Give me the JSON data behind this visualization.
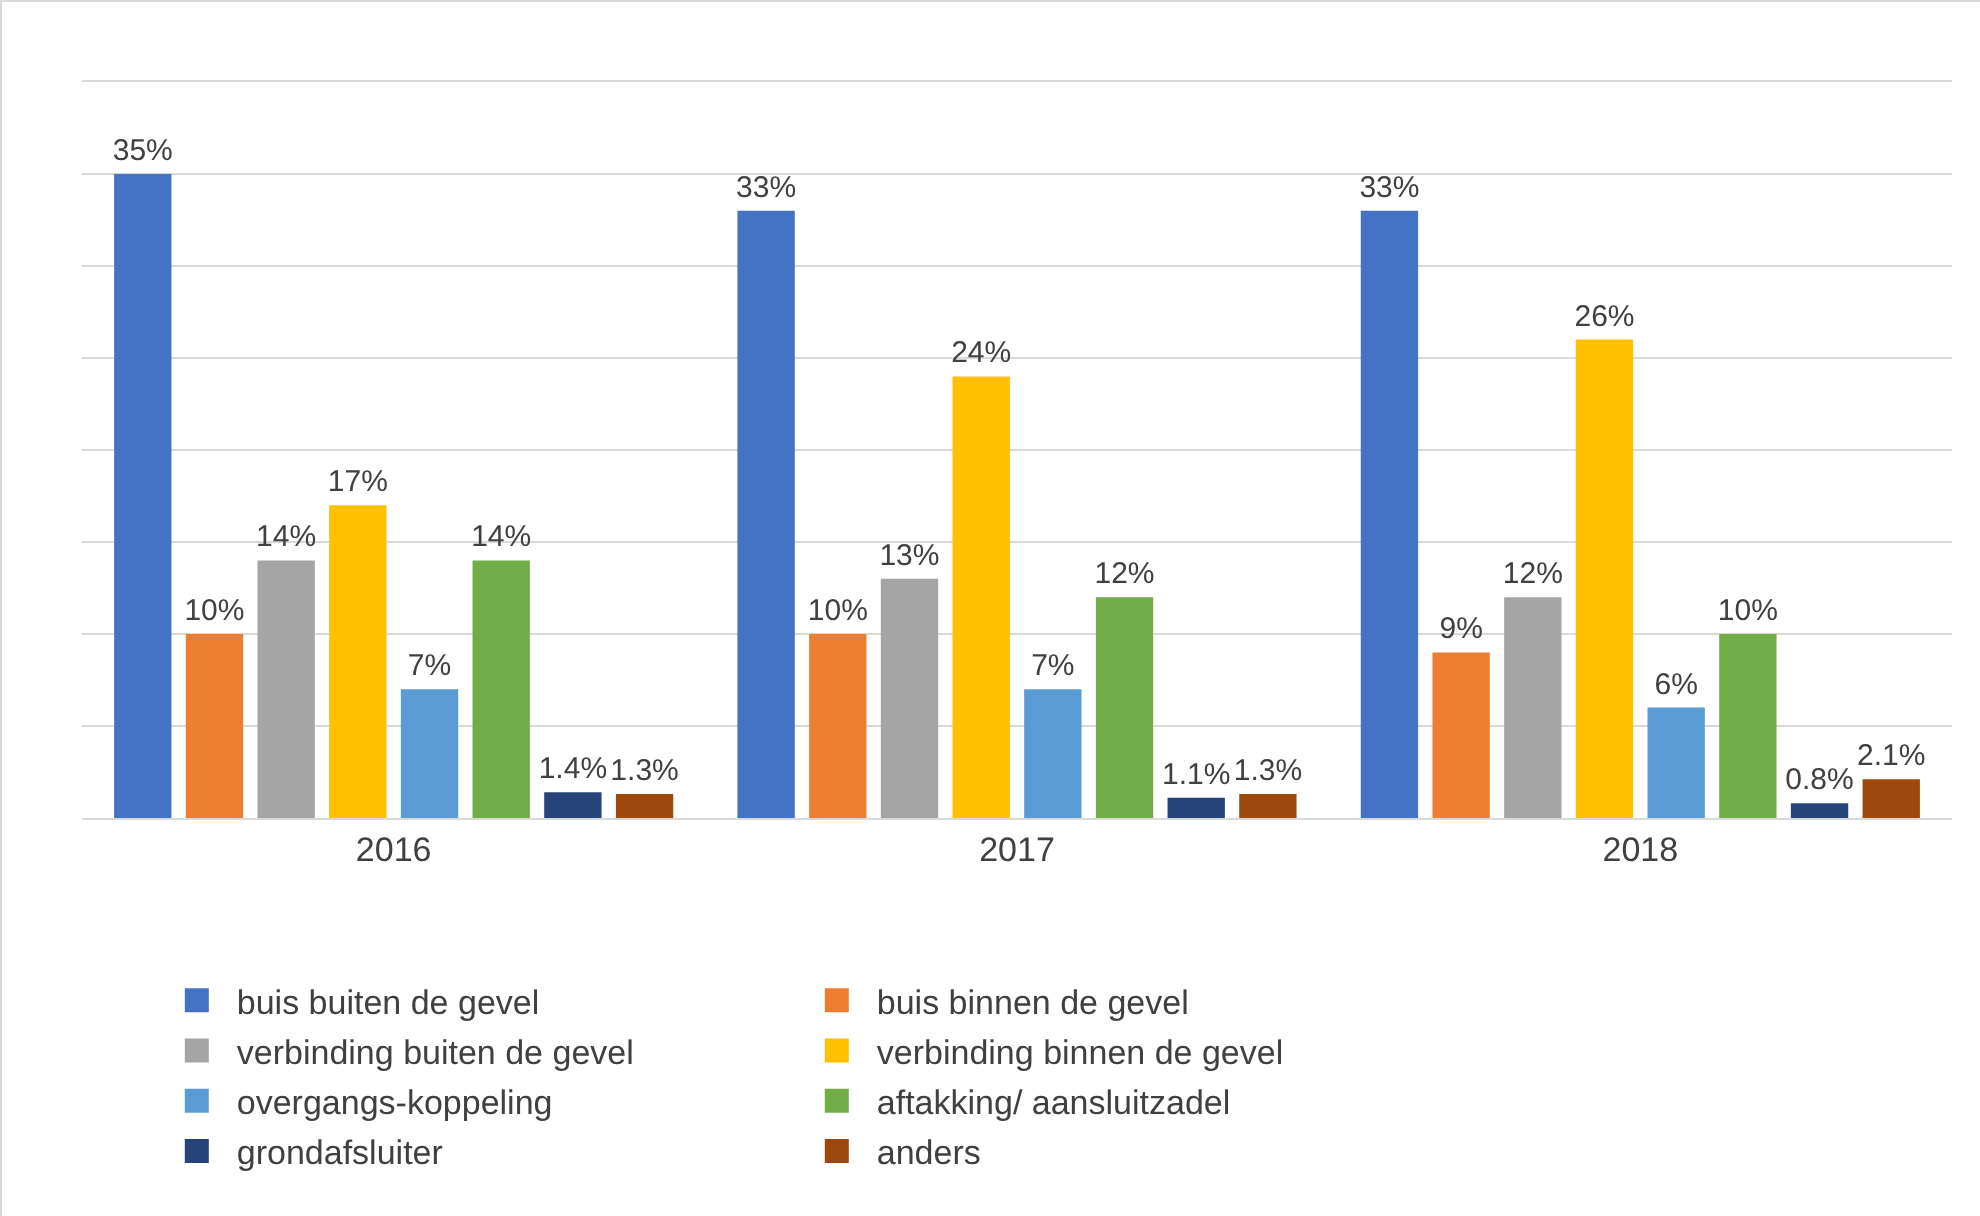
{
  "chart_data": {
    "type": "bar",
    "categories": [
      "2016",
      "2017",
      "2018"
    ],
    "series": [
      {
        "name": "buis buiten de gevel",
        "color": "#4472c4",
        "values": [
          35,
          33,
          33
        ],
        "value_labels": [
          "35%",
          "33%",
          "33%"
        ]
      },
      {
        "name": "buis binnen de gevel",
        "color": "#ed7d31",
        "values": [
          10,
          10,
          9
        ],
        "value_labels": [
          "10%",
          "10%",
          "9%"
        ]
      },
      {
        "name": "verbinding buiten de gevel",
        "color": "#a5a5a5",
        "values": [
          14,
          13,
          12
        ],
        "value_labels": [
          "14%",
          "13%",
          "12%"
        ]
      },
      {
        "name": "verbinding binnen de gevel",
        "color": "#ffc000",
        "values": [
          17,
          24,
          26
        ],
        "value_labels": [
          "17%",
          "24%",
          "26%"
        ]
      },
      {
        "name": "overgangs-koppeling",
        "color": "#5b9bd5",
        "values": [
          7,
          7,
          6
        ],
        "value_labels": [
          "7%",
          "7%",
          "6%"
        ]
      },
      {
        "name": "aftakking/ aansluitzadel",
        "color": "#70ad47",
        "values": [
          14,
          12,
          10
        ],
        "value_labels": [
          "14%",
          "12%",
          "10%"
        ]
      },
      {
        "name": "grondafsluiter",
        "color": "#264478",
        "values": [
          1.4,
          1.1,
          0.8
        ],
        "value_labels": [
          "1.4%",
          "1.1%",
          "0.8%"
        ]
      },
      {
        "name": "anders",
        "color": "#9e480e",
        "values": [
          1.3,
          1.3,
          2.1
        ],
        "value_labels": [
          "1.3%",
          "1.3%",
          "2.1%"
        ]
      }
    ],
    "ylim": [
      0,
      40
    ],
    "yticks": [
      {
        "value": 0,
        "label": null
      },
      {
        "value": 5,
        "label": null
      },
      {
        "value": 10,
        "label": null
      },
      {
        "value": 15,
        "label": null
      },
      {
        "value": 20,
        "label": null
      },
      {
        "value": 25,
        "label": null
      },
      {
        "value": 30,
        "label": null
      },
      {
        "value": 35,
        "label": null
      },
      {
        "value": 40,
        "label": null
      }
    ],
    "tick_labels": "x",
    "grid": "y",
    "legend": "bottom"
  }
}
